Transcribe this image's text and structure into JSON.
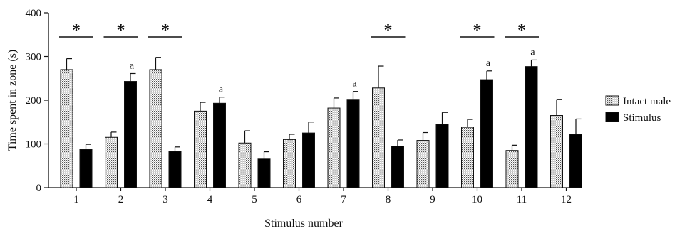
{
  "chart_data": {
    "type": "bar",
    "title": "",
    "xlabel": "Stimulus number",
    "ylabel": "Time spent in zone (s)",
    "ylim": [
      0,
      400
    ],
    "yticks": [
      "0",
      "100",
      "200",
      "300",
      "400"
    ],
    "categories": [
      "1",
      "2",
      "3",
      "4",
      "5",
      "6",
      "7",
      "8",
      "9",
      "10",
      "11",
      "12"
    ],
    "legend_position": "right",
    "series": [
      {
        "name": "Intact male",
        "pattern": "dotted",
        "values": [
          270,
          115,
          270,
          175,
          102,
          110,
          182,
          228,
          108,
          138,
          85,
          165
        ],
        "errors": [
          25,
          12,
          28,
          20,
          28,
          12,
          23,
          50,
          18,
          18,
          12,
          37
        ]
      },
      {
        "name": "Stimulus",
        "color": "#000000",
        "values": [
          87,
          243,
          83,
          193,
          67,
          125,
          202,
          95,
          145,
          247,
          277,
          122
        ],
        "errors": [
          12,
          18,
          10,
          14,
          15,
          25,
          18,
          14,
          27,
          20,
          15,
          35
        ]
      }
    ],
    "significance_star": "*",
    "significance_stars_at": [
      "1",
      "2",
      "3",
      "8",
      "10",
      "11"
    ],
    "annotation_letter": "a",
    "annotation_letters_at": [
      {
        "category": "2",
        "series": "Stimulus"
      },
      {
        "category": "4",
        "series": "Stimulus"
      },
      {
        "category": "7",
        "series": "Stimulus"
      },
      {
        "category": "10",
        "series": "Stimulus"
      },
      {
        "category": "11",
        "series": "Stimulus"
      }
    ]
  }
}
